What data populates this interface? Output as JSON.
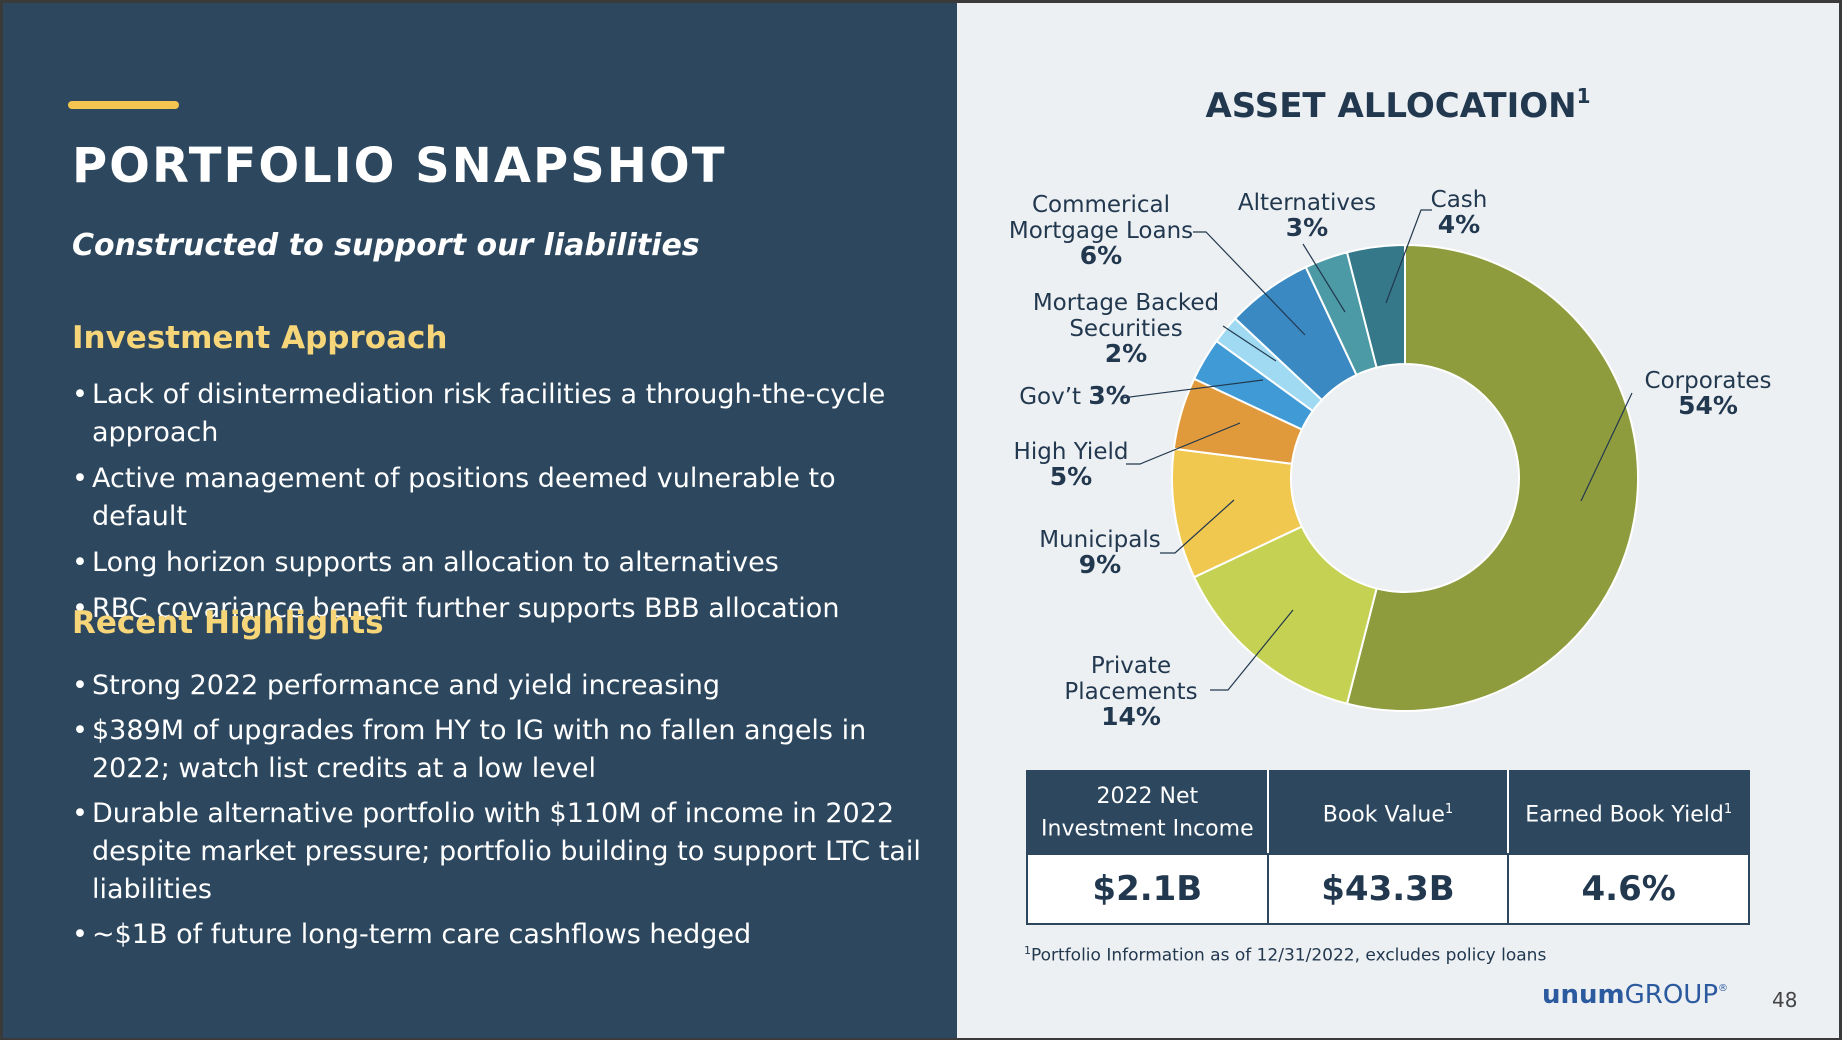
{
  "page": {
    "title": "PORTFOLIO SNAPSHOT",
    "subtitle": "Constructed to support our liabilities",
    "page_number": "48"
  },
  "colors": {
    "left_panel": "#2c475e",
    "right_panel": "#edf0f3",
    "accent_yellow": "#f3c550",
    "heading_yellow": "#f7d67a",
    "navy": "#22384f"
  },
  "investment_approach": {
    "heading": "Investment Approach",
    "bullets": [
      "Lack of disintermediation risk facilities a through-the-cycle approach",
      "Active management of positions deemed vulnerable to default",
      "Long horizon supports an allocation to alternatives",
      "RBC covariance benefit further supports BBB allocation"
    ]
  },
  "recent_highlights": {
    "heading": "Recent Highlights",
    "bullets": [
      "Strong 2022 performance and yield increasing",
      "$389M of upgrades from HY to IG with no fallen angels in 2022; watch list credits at a low level",
      "Durable alternative portfolio with $110M of income in 2022 despite market pressure; portfolio building to support LTC tail liabilities",
      "~$1B of future long-term care cashflows hedged"
    ]
  },
  "chart_data": {
    "type": "pie",
    "donut": true,
    "title": "ASSET ALLOCATION",
    "title_footnote_marker": "1",
    "slices": [
      {
        "label": "Corporates",
        "value": 54,
        "display": "54%",
        "color": "#8f9c3d"
      },
      {
        "label": "Private Placements",
        "value": 14,
        "display": "14%",
        "color": "#c5d152"
      },
      {
        "label": "Municipals",
        "value": 9,
        "display": "9%",
        "color": "#f1c84f"
      },
      {
        "label": "High Yield",
        "value": 5,
        "display": "5%",
        "color": "#e09a3c"
      },
      {
        "label": "Gov’t",
        "value": 3,
        "display": "3%",
        "color": "#3f9ad6"
      },
      {
        "label": "Mortage Backed Securities",
        "value": 2,
        "display": "2%",
        "color": "#9fdaf2"
      },
      {
        "label": "Commerical Mortgage Loans",
        "value": 6,
        "display": "6%",
        "color": "#3a89c2"
      },
      {
        "label": "Alternatives",
        "value": 3,
        "display": "3%",
        "color": "#4c9aa6"
      },
      {
        "label": "Cash",
        "value": 4,
        "display": "4%",
        "color": "#347889"
      }
    ]
  },
  "stats": {
    "headers": [
      {
        "label": "2022 Net Investment Income",
        "sup": ""
      },
      {
        "label": "Book Value",
        "sup": "1"
      },
      {
        "label": "Earned Book Yield",
        "sup": "1"
      }
    ],
    "values": [
      "$2.1B",
      "$43.3B",
      "4.6%"
    ]
  },
  "footnote": {
    "marker": "1",
    "text": "Portfolio Information as of 12/31/2022, excludes policy loans"
  },
  "logo": {
    "word": "unum",
    "suffix": "GROUP",
    "reg": "®"
  }
}
